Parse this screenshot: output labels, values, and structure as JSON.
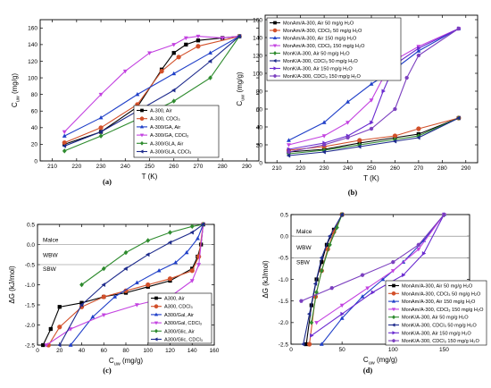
{
  "chart_data": [
    {
      "type": "line",
      "panel_label": "(a)",
      "xlabel": "T (K)",
      "ylabel": "C",
      "ylabel_sub": "uw",
      "ylabel_unit": " (mg/g)",
      "xlim": [
        205,
        295
      ],
      "ylim": [
        0,
        170
      ],
      "xticks": [
        210,
        220,
        230,
        240,
        250,
        260,
        270,
        280,
        290
      ],
      "yticks": [
        0,
        20,
        40,
        60,
        80,
        100,
        120,
        140,
        160
      ],
      "legend_position": "lower-right",
      "series": [
        {
          "name": "A-300, Air",
          "color": "#000000",
          "marker": "square",
          "x": [
            215,
            230,
            245,
            255,
            260,
            265,
            270,
            280,
            287
          ],
          "y": [
            20,
            35,
            65,
            110,
            130,
            140,
            145,
            148,
            150
          ]
        },
        {
          "name": "A-300, CDCl₃",
          "color": "#d2502a",
          "marker": "circle",
          "x": [
            215,
            230,
            245,
            255,
            262,
            270,
            287
          ],
          "y": [
            22,
            40,
            68,
            108,
            125,
            138,
            150
          ]
        },
        {
          "name": "A-300/GA, Air",
          "color": "#1f3fc8",
          "marker": "triangle",
          "x": [
            215,
            230,
            245,
            260,
            275,
            287
          ],
          "y": [
            30,
            52,
            80,
            105,
            130,
            150
          ]
        },
        {
          "name": "A-300/GA, CDCl₃",
          "color": "#c342e0",
          "marker": "triangle-down",
          "x": [
            215,
            230,
            240,
            250,
            260,
            265,
            270,
            280,
            287
          ],
          "y": [
            35,
            80,
            108,
            130,
            140,
            148,
            150,
            148,
            150
          ]
        },
        {
          "name": "A-300/GLA, Air",
          "color": "#2e8b2e",
          "marker": "diamond",
          "x": [
            215,
            230,
            245,
            260,
            275,
            287
          ],
          "y": [
            12,
            30,
            50,
            72,
            100,
            150
          ]
        },
        {
          "name": "A-300/GLA, CDCl₃",
          "color": "#1d2a8c",
          "marker": "triangle-left",
          "x": [
            215,
            230,
            245,
            260,
            275,
            287
          ],
          "y": [
            18,
            35,
            60,
            85,
            120,
            150
          ]
        }
      ]
    },
    {
      "type": "line",
      "panel_label": "(b)",
      "xlabel": "T (K)",
      "ylabel": "C",
      "ylabel_sub": "uw",
      "ylabel_unit": " (mg/g)",
      "xlim": [
        205,
        295
      ],
      "ylim": [
        0,
        165
      ],
      "xticks": [
        210,
        220,
        230,
        240,
        250,
        260,
        270,
        280,
        290
      ],
      "yticks": [
        0,
        20,
        40,
        60,
        80,
        100,
        120,
        140,
        160
      ],
      "legend_position": "top-left",
      "series": [
        {
          "name": "MonAm/A-300, Air 50 mg/g H₂O",
          "color": "#000000",
          "marker": "square",
          "x": [
            215,
            230,
            245,
            260,
            270,
            287
          ],
          "y": [
            12,
            15,
            22,
            28,
            32,
            50
          ]
        },
        {
          "name": "MonAm/A-300, CDCl₃ 50 mg/g H₂O",
          "color": "#d2502a",
          "marker": "circle",
          "x": [
            215,
            230,
            245,
            260,
            270,
            287
          ],
          "y": [
            14,
            18,
            25,
            30,
            38,
            50
          ]
        },
        {
          "name": "MonAm/A-300, Air 150 mg/g H₂O",
          "color": "#1f3fc8",
          "marker": "triangle",
          "x": [
            215,
            230,
            240,
            250,
            260,
            270,
            287
          ],
          "y": [
            25,
            45,
            68,
            88,
            105,
            125,
            150
          ]
        },
        {
          "name": "MonAm/A-300, CDCl₃ 150 mg/g H₂O",
          "color": "#c342e0",
          "marker": "triangle-down",
          "x": [
            215,
            230,
            240,
            250,
            255,
            260,
            270,
            287
          ],
          "y": [
            20,
            30,
            45,
            70,
            95,
            115,
            130,
            150
          ]
        },
        {
          "name": "MonK/A-300, Air 50 mg/g H₂O",
          "color": "#2e8b2e",
          "marker": "diamond",
          "x": [
            215,
            230,
            245,
            260,
            270,
            287
          ],
          "y": [
            10,
            14,
            20,
            26,
            30,
            50
          ]
        },
        {
          "name": "MonK/A-300, CDCl₃ 50 mg/g H₂O",
          "color": "#1d2a8c",
          "marker": "triangle-left",
          "x": [
            215,
            230,
            245,
            260,
            270,
            287
          ],
          "y": [
            8,
            12,
            18,
            24,
            28,
            50
          ]
        },
        {
          "name": "MonK/A-300, Air 150 mg/g H₂O",
          "color": "#6a2bd0",
          "marker": "triangle-right",
          "x": [
            215,
            230,
            240,
            250,
            255,
            260,
            270,
            287
          ],
          "y": [
            15,
            22,
            30,
            45,
            80,
            110,
            128,
            150
          ]
        },
        {
          "name": "MonK/A-300, CDCl₃ 150 mg/g H₂O",
          "color": "#7b3fbf",
          "marker": "hexagon",
          "x": [
            215,
            230,
            240,
            250,
            260,
            265,
            270,
            287
          ],
          "y": [
            12,
            20,
            28,
            38,
            60,
            95,
            120,
            150
          ]
        }
      ]
    },
    {
      "type": "line",
      "panel_label": "(c)",
      "xlabel": "C",
      "xlabel_sub": "uw",
      "xlabel_unit": " (mg/g)",
      "ylabel": "ΔG (kJ/mol)",
      "xlim": [
        0,
        160
      ],
      "ylim": [
        -2.5,
        0.5
      ],
      "xticks": [
        0,
        20,
        40,
        60,
        80,
        100,
        120,
        140,
        160
      ],
      "yticks": [
        -2.5,
        -2.0,
        -1.5,
        -1.0,
        -0.5,
        0.0,
        0.5
      ],
      "ytick_labels": [
        "-2.5",
        "-2.0",
        "-1.5",
        "-1.0",
        "-0.5",
        "0.0",
        "0.5"
      ],
      "legend_position": "bottom-right",
      "hlines": [
        {
          "y": 0.0,
          "label": "Malce"
        },
        {
          "y": -0.5,
          "label": "SBW"
        }
      ],
      "text_annotations": [
        {
          "label": "WBW",
          "y": -0.25
        }
      ],
      "series": [
        {
          "name": "A300, Air",
          "color": "#000000",
          "marker": "square",
          "x": [
            5,
            12,
            20,
            40,
            60,
            80,
            100,
            120,
            140,
            145,
            148,
            150
          ],
          "y": [
            -2.5,
            -2.1,
            -1.55,
            -1.45,
            -1.3,
            -1.2,
            -1.05,
            -0.9,
            -0.6,
            -0.3,
            0.0,
            0.5
          ]
        },
        {
          "name": "A300, CDCl₃",
          "color": "#d2502a",
          "marker": "circle",
          "x": [
            10,
            20,
            40,
            60,
            80,
            100,
            120,
            140,
            146,
            150
          ],
          "y": [
            -2.5,
            -2.05,
            -1.55,
            -1.3,
            -1.15,
            -1.0,
            -0.85,
            -0.65,
            -0.3,
            0.5
          ]
        },
        {
          "name": "A300/Gal, Air",
          "color": "#1f3fc8",
          "marker": "triangle",
          "x": [
            30,
            50,
            70,
            90,
            110,
            125,
            135,
            145,
            150
          ],
          "y": [
            -2.5,
            -1.8,
            -1.3,
            -0.95,
            -0.65,
            -0.45,
            -0.2,
            0.15,
            0.5
          ]
        },
        {
          "name": "A300/Gal, CDCl₃",
          "color": "#c342e0",
          "marker": "triangle-down",
          "x": [
            8,
            30,
            60,
            90,
            120,
            140,
            146,
            150
          ],
          "y": [
            -2.5,
            -2.1,
            -1.75,
            -1.5,
            -1.3,
            -0.9,
            -0.5,
            0.5
          ]
        },
        {
          "name": "A300/Glic, Air",
          "color": "#2e8b2e",
          "marker": "diamond",
          "x": [
            40,
            60,
            80,
            100,
            120,
            140,
            150
          ],
          "y": [
            -1.0,
            -0.6,
            -0.2,
            0.1,
            0.3,
            0.45,
            0.5
          ]
        },
        {
          "name": "A300/Glic, CDCl₃",
          "color": "#1d2a8c",
          "marker": "triangle-left",
          "x": [
            20,
            40,
            60,
            80,
            100,
            120,
            140,
            150
          ],
          "y": [
            -2.5,
            -1.5,
            -1.0,
            -0.6,
            -0.25,
            0.05,
            0.3,
            0.5
          ]
        }
      ]
    },
    {
      "type": "line",
      "panel_label": "(d)",
      "xlabel": "C",
      "xlabel_sub": "uw",
      "xlabel_unit": " (mg/g)",
      "ylabel": "ΔG (kJ/mol)",
      "xlim": [
        0,
        175
      ],
      "ylim": [
        -2.5,
        0.5
      ],
      "xticks": [
        0,
        50,
        100,
        150
      ],
      "yticks": [
        -2.5,
        -2.0,
        -1.5,
        -1.0,
        -0.5,
        0.0,
        0.5
      ],
      "ytick_labels": [
        "-2.5",
        "-2.0",
        "-1.5",
        "-1.0",
        "-0.5",
        "0.0",
        "0.5"
      ],
      "legend_position": "bottom-right",
      "hlines": [
        {
          "y": 0.0,
          "label": "Malce"
        },
        {
          "y": -0.5,
          "label": "SBW"
        }
      ],
      "text_annotations": [
        {
          "label": "WBW",
          "y": -0.25
        }
      ],
      "series": [
        {
          "name": "MonAm/A-300, Air 50 mg/g H₂O",
          "color": "#000000",
          "marker": "square",
          "x": [
            15,
            20,
            25,
            30,
            35,
            42,
            50
          ],
          "y": [
            -2.5,
            -1.6,
            -1.0,
            -0.6,
            -0.2,
            0.15,
            0.5
          ]
        },
        {
          "name": "MonAm/A-300, CDCl₃ 50 mg/g H₂O",
          "color": "#d2502a",
          "marker": "circle",
          "x": [
            18,
            24,
            30,
            36,
            42,
            50
          ],
          "y": [
            -2.5,
            -1.4,
            -0.8,
            -0.3,
            0.1,
            0.5
          ]
        },
        {
          "name": "MonAm/A-300, Air 150 mg/g H₂O",
          "color": "#1f3fc8",
          "marker": "triangle",
          "x": [
            30,
            50,
            70,
            90,
            110,
            130,
            150
          ],
          "y": [
            -2.5,
            -1.9,
            -1.4,
            -1.0,
            -0.6,
            -0.1,
            0.5
          ]
        },
        {
          "name": "MonAm/A-300, CDCl₃ 150 mg/g H₂O",
          "color": "#c342e0",
          "marker": "triangle-down",
          "x": [
            25,
            50,
            75,
            100,
            125,
            150
          ],
          "y": [
            -2.0,
            -1.6,
            -1.2,
            -0.8,
            -0.3,
            0.5
          ]
        },
        {
          "name": "MonK/A-300, Air 50 mg/g H₂O",
          "color": "#2e8b2e",
          "marker": "diamond",
          "x": [
            20,
            25,
            30,
            38,
            45,
            50
          ],
          "y": [
            -2.0,
            -1.3,
            -0.8,
            -0.2,
            0.2,
            0.5
          ]
        },
        {
          "name": "MonK/A-300, CDCl₃ 50 mg/g H₂O",
          "color": "#1d2a8c",
          "marker": "triangle-left",
          "x": [
            12,
            18,
            24,
            30,
            38,
            50
          ],
          "y": [
            -2.5,
            -1.8,
            -1.1,
            -0.5,
            0.0,
            0.5
          ]
        },
        {
          "name": "MonK/A-300, Air 150 mg/g H₂O",
          "color": "#6a2bd0",
          "marker": "triangle-right",
          "x": [
            20,
            50,
            80,
            110,
            130,
            150
          ],
          "y": [
            -2.3,
            -1.8,
            -1.3,
            -0.9,
            -0.4,
            0.5
          ]
        },
        {
          "name": "MonK/A-300, CDCl₃ 150 mg/g H₂O",
          "color": "#7b3fbf",
          "marker": "hexagon",
          "x": [
            10,
            40,
            70,
            100,
            125,
            150
          ],
          "y": [
            -1.5,
            -1.2,
            -0.9,
            -0.6,
            -0.2,
            0.5
          ]
        }
      ]
    }
  ]
}
